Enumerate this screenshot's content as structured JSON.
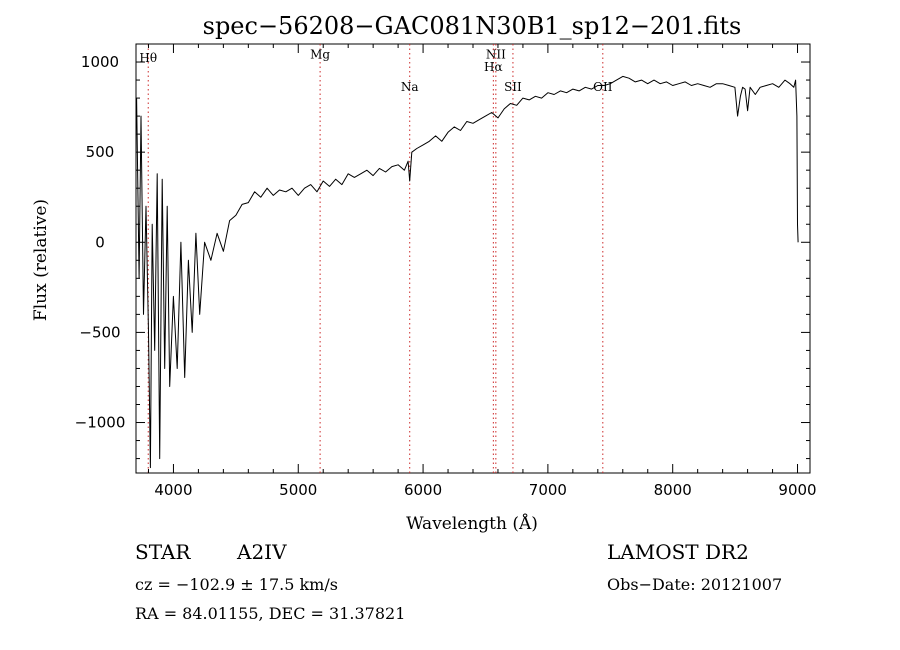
{
  "chart_data": {
    "type": "line",
    "title": "spec−56208−GAC081N30B1_sp12−201.fits",
    "xlabel": "Wavelength (Å)",
    "ylabel": "Flux (relative)",
    "xlim": [
      3700,
      9100
    ],
    "ylim": [
      -1280,
      1100
    ],
    "x_ticks": [
      4000,
      5000,
      6000,
      7000,
      8000,
      9000
    ],
    "x_tick_labels": [
      "4000",
      "5000",
      "6000",
      "7000",
      "8000",
      "9000"
    ],
    "y_ticks": [
      -1000,
      -500,
      0,
      500,
      1000
    ],
    "y_tick_labels": [
      "−1000",
      "−500",
      "0",
      "500",
      "1000"
    ],
    "grid": false,
    "line_color": "#000000",
    "marker_color": "#cc2a2a",
    "lines": [
      {
        "label": "Hθ",
        "x": 3798,
        "label_y": 1000
      },
      {
        "label": "Mg",
        "x": 5175,
        "label_y": 1020
      },
      {
        "label": "Na",
        "x": 5893,
        "label_y": 840
      },
      {
        "label": "NII",
        "x": 6583,
        "label_y": 1020
      },
      {
        "label": "Hα",
        "x": 6563,
        "label_y": 950
      },
      {
        "label": "SII",
        "x": 6720,
        "label_y": 840
      },
      {
        "label": "OII",
        "x": 7440,
        "label_y": 840
      }
    ],
    "spectrum": {
      "x": [
        3705,
        3725,
        3740,
        3760,
        3780,
        3800,
        3815,
        3830,
        3850,
        3870,
        3890,
        3910,
        3930,
        3950,
        3970,
        4000,
        4030,
        4060,
        4090,
        4120,
        4150,
        4180,
        4210,
        4250,
        4300,
        4350,
        4400,
        4450,
        4500,
        4550,
        4600,
        4650,
        4700,
        4750,
        4800,
        4850,
        4900,
        4950,
        5000,
        5050,
        5100,
        5150,
        5200,
        5250,
        5300,
        5350,
        5400,
        5450,
        5500,
        5550,
        5600,
        5650,
        5700,
        5750,
        5800,
        5850,
        5880,
        5893,
        5910,
        5950,
        6000,
        6050,
        6100,
        6150,
        6200,
        6250,
        6300,
        6350,
        6400,
        6450,
        6500,
        6550,
        6600,
        6650,
        6700,
        6750,
        6800,
        6850,
        6900,
        6950,
        7000,
        7050,
        7100,
        7150,
        7200,
        7250,
        7300,
        7350,
        7400,
        7450,
        7500,
        7550,
        7600,
        7650,
        7700,
        7750,
        7800,
        7850,
        7900,
        7950,
        8000,
        8050,
        8100,
        8150,
        8200,
        8250,
        8300,
        8350,
        8400,
        8450,
        8498,
        8520,
        8542,
        8560,
        8580,
        8600,
        8620,
        8662,
        8700,
        8750,
        8800,
        8850,
        8900,
        8940,
        8970,
        8985,
        8995,
        9000,
        9005
      ],
      "y": [
        800,
        -200,
        700,
        -400,
        200,
        -500,
        -1250,
        100,
        -600,
        380,
        -1200,
        350,
        -700,
        200,
        -800,
        -300,
        -700,
        0,
        -750,
        -100,
        -500,
        50,
        -400,
        0,
        -100,
        50,
        -50,
        120,
        150,
        210,
        220,
        280,
        250,
        300,
        260,
        290,
        280,
        300,
        260,
        300,
        320,
        280,
        340,
        310,
        350,
        320,
        380,
        360,
        380,
        400,
        370,
        410,
        390,
        420,
        430,
        400,
        450,
        340,
        500,
        520,
        540,
        560,
        590,
        560,
        610,
        640,
        620,
        670,
        660,
        680,
        700,
        720,
        690,
        740,
        770,
        760,
        800,
        790,
        810,
        800,
        830,
        820,
        840,
        830,
        850,
        840,
        860,
        850,
        870,
        870,
        880,
        900,
        920,
        910,
        890,
        900,
        880,
        900,
        880,
        890,
        870,
        880,
        890,
        870,
        880,
        870,
        860,
        880,
        880,
        870,
        860,
        700,
        810,
        860,
        850,
        730,
        860,
        820,
        860,
        870,
        880,
        860,
        900,
        880,
        860,
        900,
        700,
        100,
        0
      ]
    }
  },
  "info": {
    "object_type": "STAR",
    "subclass": "A2IV",
    "survey": "LAMOST DR2",
    "cz": "cz = −102.9 ± 17.5 km/s",
    "obs_date": "Obs−Date: 20121007",
    "coords": "RA =  84.01155, DEC =  31.37821"
  }
}
